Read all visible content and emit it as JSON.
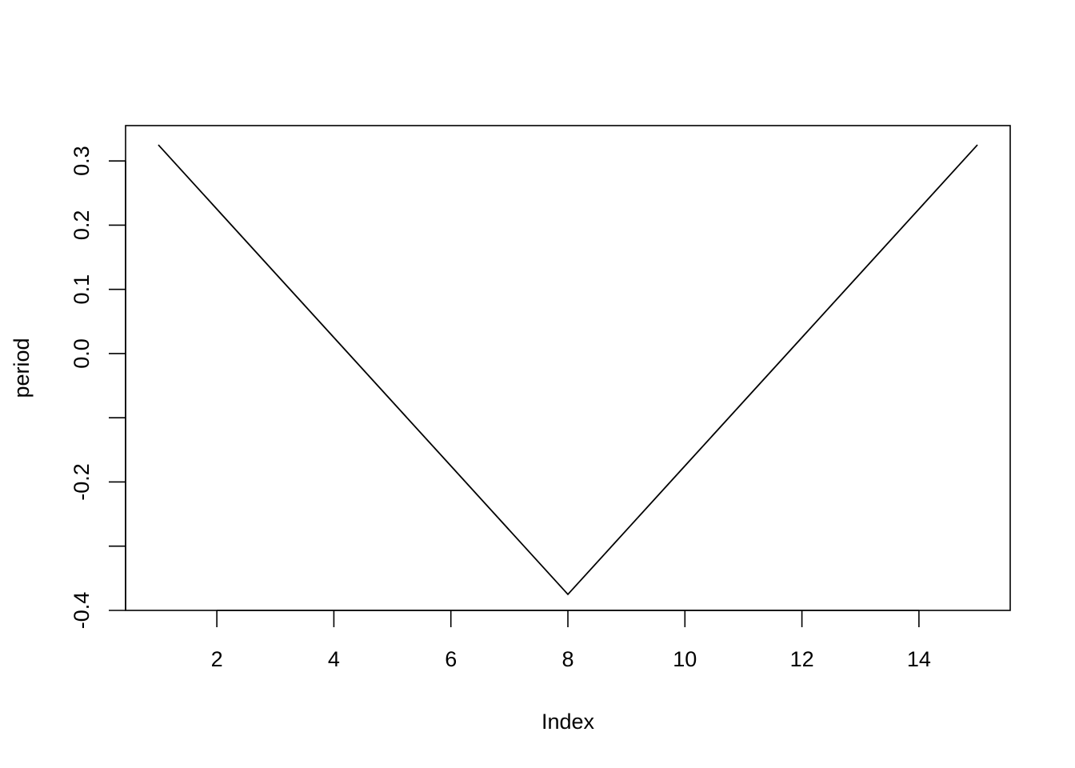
{
  "chart_data": {
    "type": "line",
    "title": "",
    "xlabel": "Index",
    "ylabel": "period",
    "x": [
      1,
      2,
      3,
      4,
      5,
      6,
      7,
      8,
      9,
      10,
      11,
      12,
      13,
      14,
      15
    ],
    "series": [
      {
        "values": [
          0.325,
          0.225,
          0.125,
          0.025,
          -0.075,
          -0.175,
          -0.275,
          -0.375,
          -0.275,
          -0.175,
          -0.075,
          0.025,
          0.125,
          0.225,
          0.325
        ]
      }
    ],
    "xlim": [
      0.44,
      15.56
    ],
    "ylim": [
      -0.4,
      0.355
    ],
    "x_ticks": [
      2,
      4,
      6,
      8,
      10,
      12,
      14
    ],
    "x_tick_labels": [
      "2",
      "4",
      "6",
      "8",
      "10",
      "12",
      "14"
    ],
    "y_ticks": [
      -0.4,
      -0.3,
      -0.2,
      -0.1,
      0.0,
      0.1,
      0.2,
      0.3
    ],
    "y_tick_labels": [
      "-0.4",
      "",
      "-0.2",
      "",
      "0.0",
      "0.1",
      "0.2",
      "0.3"
    ],
    "grid": false,
    "legend": "none",
    "line_color": "#000000"
  }
}
